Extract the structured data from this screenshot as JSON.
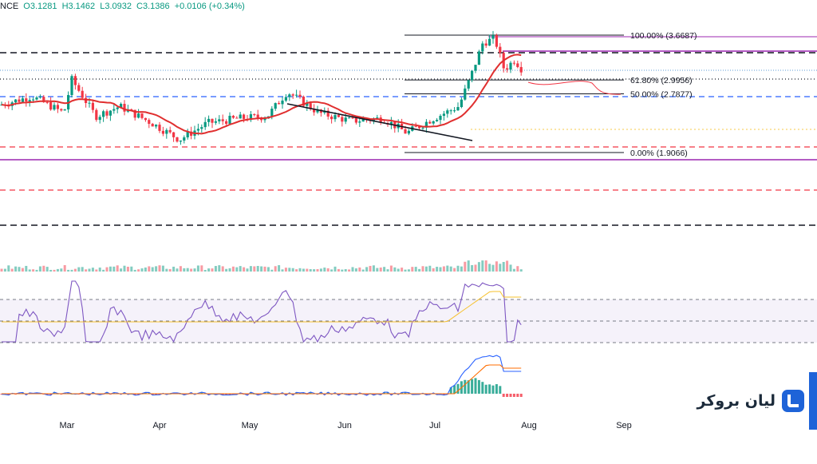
{
  "header": {
    "symbol_fragment": "NCE",
    "open": "O3.1281",
    "high": "H3.1462",
    "low": "L3.0932",
    "close": "C3.1386",
    "change": "+0.0106 (+0.34%)"
  },
  "brand": {
    "text": "لیان بروکر"
  },
  "colors": {
    "up": "#089981",
    "down": "#f23645",
    "ma": "#e02f2f",
    "rsi_line": "#7e57c2",
    "rsi_ma": "#f6c12e",
    "macd": "#2962ff",
    "signal": "#ff6d00",
    "brand": "#1e63d8"
  },
  "chart_data": [
    {
      "type": "candlestick",
      "x_labels": [
        "Mar",
        "Apr",
        "May",
        "Jun",
        "Jul",
        "Aug",
        "Sep"
      ],
      "fibonacci": [
        {
          "label": "100.00% (3.6687)",
          "value": 3.6687
        },
        {
          "label": "61.80% (2.9956)",
          "value": 2.9956
        },
        {
          "label": "50.00% (2.7877)",
          "value": 2.7877
        },
        {
          "label": "0.00% (1.9066)",
          "value": 1.9066
        }
      ],
      "last_close": 3.1386,
      "approx_ohlc_anchors": [
        2.7,
        2.6,
        2.3,
        2.2,
        2.4,
        2.55,
        2.3,
        2.2,
        3.3,
        3.55,
        3.15
      ]
    },
    {
      "type": "line",
      "name": "",
      "range": [
        0,
        100
      ],
      "levels": [
        70,
        50,
        30
      ]
    },
    {
      "type": "line",
      "name": "",
      "series": [
        {
          "name": "",
          "values": []
        },
        {
          "name": "",
          "values": []
        }
      ]
    }
  ]
}
